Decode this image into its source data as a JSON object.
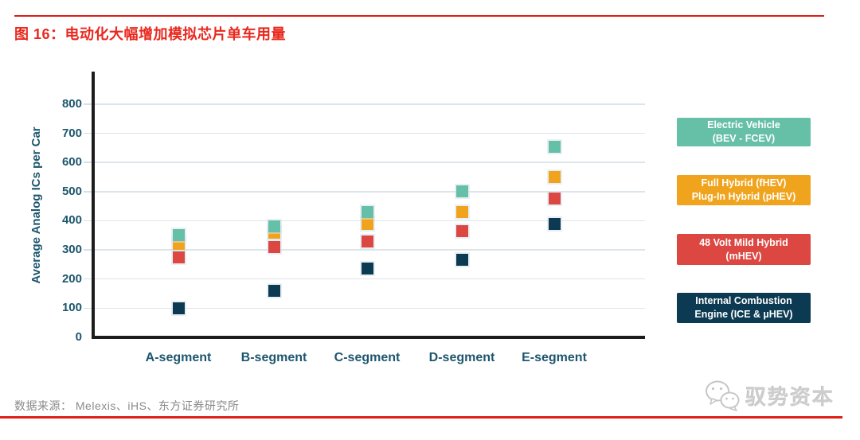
{
  "page": {
    "title": "图 16：电动化大幅增加模拟芯片单车用量",
    "source": "数据来源： Melexis、iHS、东方证券研究所",
    "logo_text": "驭势资本",
    "accent_red": "#D92119",
    "axis_text_color": "#1D566E"
  },
  "chart_data": {
    "type": "scatter",
    "title": "",
    "xlabel": "",
    "ylabel": "Average Analog ICs per Car",
    "ylim": [
      0,
      800
    ],
    "ytick_step": 100,
    "grid": true,
    "legend_position": "right",
    "marker": "square",
    "categories": [
      "A-segment",
      "B-segment",
      "C-segment",
      "D-segment",
      "E-segment"
    ],
    "series": [
      {
        "name": "Electric Vehicle (BEV - FCEV)",
        "label_lines": [
          "Electric Vehicle",
          "(BEV - FCEV)"
        ],
        "color": "#66BFA7",
        "values": [
          350,
          380,
          430,
          500,
          655
        ]
      },
      {
        "name": "Full Hybrid (fHEV) Plug-In Hybrid (pHEV)",
        "label_lines": [
          "Full Hybrid (fHEV)",
          "Plug-In Hybrid (pHEV)"
        ],
        "color": "#F0A41E",
        "values": [
          320,
          360,
          390,
          430,
          550
        ]
      },
      {
        "name": "48 Volt Mild Hybrid (mHEV)",
        "label_lines": [
          "48 Volt Mild Hybrid",
          "(mHEV)"
        ],
        "color": "#DC4742",
        "values": [
          275,
          310,
          330,
          365,
          475
        ]
      },
      {
        "name": "Internal Combustion Engine (ICE & µHEV)",
        "label_lines": [
          "Internal Combustion",
          "Engine (ICE & µHEV)"
        ],
        "color": "#0C3A52",
        "values": [
          100,
          160,
          235,
          265,
          390
        ]
      }
    ]
  }
}
